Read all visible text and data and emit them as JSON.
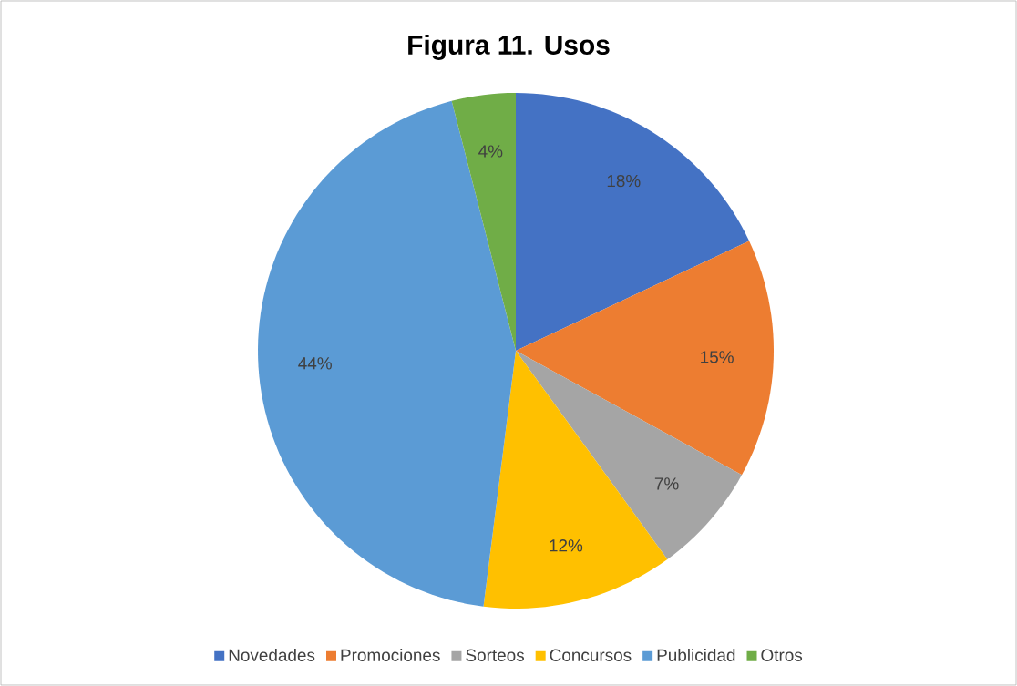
{
  "chart_data": {
    "type": "pie",
    "title": "Figura 11. Usos",
    "categories": [
      "Novedades",
      "Promociones",
      "Sorteos",
      "Concursos",
      "Publicidad",
      "Otros"
    ],
    "values": [
      18,
      15,
      7,
      12,
      44,
      4
    ],
    "value_labels": [
      "18%",
      "15%",
      "7%",
      "12%",
      "44%",
      "4%"
    ],
    "colors": [
      "#4472c4",
      "#ed7d31",
      "#a5a5a5",
      "#ffc000",
      "#5b9bd5",
      "#70ad47"
    ],
    "legend": "bottom"
  }
}
